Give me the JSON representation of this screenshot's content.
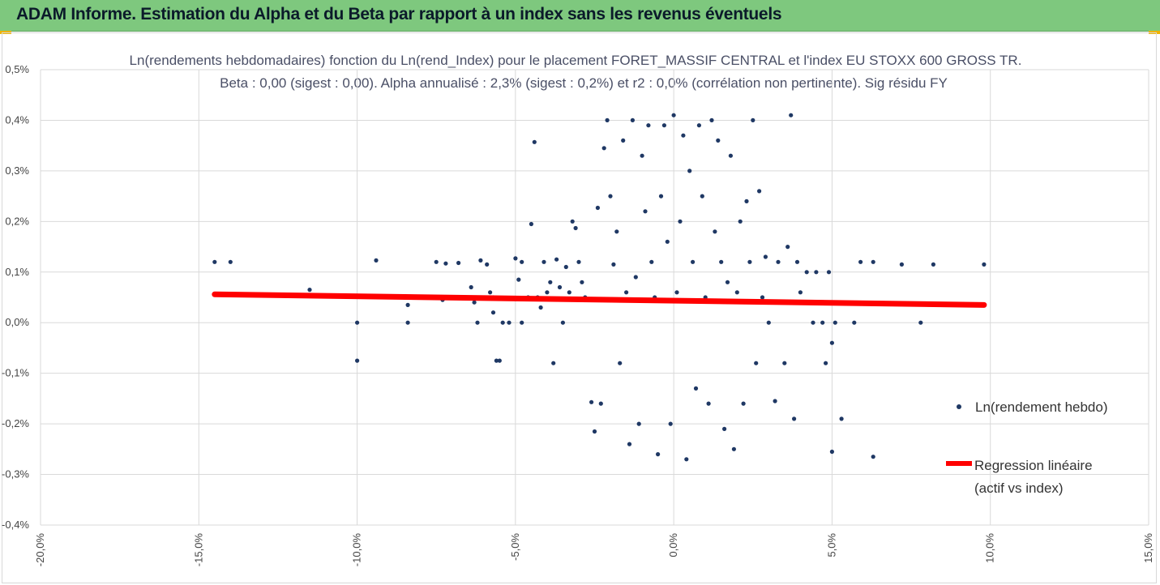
{
  "banner": {
    "title": "ADAM Informe. Estimation du Alpha et du Beta par rapport à un index sans les revenus éventuels"
  },
  "colors": {
    "banner": "#7ec87e",
    "points": "#1f3864",
    "regression": "#ff0000",
    "grid": "#d9d9d9",
    "accent": "#f0b400"
  },
  "chart_data": {
    "type": "scatter",
    "title": "Ln(rendements hebdomadaires) fonction du Ln(rend_Index) pour le placement FORET_MASSIF CENTRAL et l'index EU STOXX 600 GROSS TR.",
    "subtitle": "Beta : 0,00 (sigest : 0,00). Alpha annualisé : 2,3% (sigest : 0,2%) et r2 : 0,0% (corrélation non pertinente). Sig résidu FY",
    "xlim": [
      -20,
      15
    ],
    "ylim": [
      -0.4,
      0.5
    ],
    "x_ticks": [
      "-20,0%",
      "-15,0%",
      "-10,0%",
      "-5,0%",
      "0,0%",
      "5,0%",
      "10,0%",
      "15,0%"
    ],
    "y_ticks": [
      "0,5%",
      "0,4%",
      "0,3%",
      "0,2%",
      "0,1%",
      "0,0%",
      "-0,1%",
      "-0,2%",
      "-0,3%",
      "-0,4%"
    ],
    "grid": true,
    "legend_position": "right",
    "series": [
      {
        "name": "Ln(rendement hebdo)",
        "type": "scatter",
        "points": [
          [
            -14.5,
            0.12
          ],
          [
            -14,
            0.12
          ],
          [
            -11.5,
            0.065
          ],
          [
            -10,
            0
          ],
          [
            -10,
            -0.075
          ],
          [
            -9.4,
            0.123
          ],
          [
            -8.4,
            0.035
          ],
          [
            -8.4,
            0
          ],
          [
            -7.5,
            0.12
          ],
          [
            -7.3,
            0.045
          ],
          [
            -7.2,
            0.117
          ],
          [
            -6.8,
            0.118
          ],
          [
            -6.4,
            0.07
          ],
          [
            -6.3,
            0.04
          ],
          [
            -6.2,
            0
          ],
          [
            -6.1,
            0.123
          ],
          [
            -5.9,
            0.115
          ],
          [
            -5.8,
            0.06
          ],
          [
            -5.7,
            0.05
          ],
          [
            -5.7,
            0.02
          ],
          [
            -5.6,
            -0.075
          ],
          [
            -5.5,
            -0.075
          ],
          [
            -5.4,
            0
          ],
          [
            -5.2,
            0
          ],
          [
            -5,
            0.127
          ],
          [
            -4.9,
            0.085
          ],
          [
            -4.8,
            0.12
          ],
          [
            -4.8,
            0
          ],
          [
            -4.6,
            0.05
          ],
          [
            -4.5,
            0.195
          ],
          [
            -4.4,
            0.357
          ],
          [
            -4.3,
            0.05
          ],
          [
            -4.2,
            0.03
          ],
          [
            -4.1,
            0.12
          ],
          [
            -4,
            0.06
          ],
          [
            -3.9,
            0.08
          ],
          [
            -3.8,
            -0.08
          ],
          [
            -3.7,
            0.125
          ],
          [
            -3.6,
            0.07
          ],
          [
            -3.5,
            0
          ],
          [
            -3.4,
            0.11
          ],
          [
            -3.3,
            0.06
          ],
          [
            -3.2,
            0.2
          ],
          [
            -3.1,
            0.187
          ],
          [
            -3,
            0.12
          ],
          [
            -2.9,
            0.08
          ],
          [
            -2.8,
            0.05
          ],
          [
            -2.6,
            -0.157
          ],
          [
            -2.5,
            -0.215
          ],
          [
            -2.4,
            0.227
          ],
          [
            -2.3,
            -0.16
          ],
          [
            -2.2,
            0.345
          ],
          [
            -2.1,
            0.4
          ],
          [
            -2,
            0.25
          ],
          [
            -1.9,
            0.115
          ],
          [
            -1.8,
            0.18
          ],
          [
            -1.7,
            -0.08
          ],
          [
            -1.6,
            0.36
          ],
          [
            -1.5,
            0.06
          ],
          [
            -1.4,
            -0.24
          ],
          [
            -1.3,
            0.4
          ],
          [
            -1.2,
            0.09
          ],
          [
            -1.1,
            -0.2
          ],
          [
            -1,
            0.33
          ],
          [
            -0.9,
            0.22
          ],
          [
            -0.8,
            0.39
          ],
          [
            -0.7,
            0.12
          ],
          [
            -0.6,
            0.05
          ],
          [
            -0.5,
            -0.26
          ],
          [
            -0.4,
            0.25
          ],
          [
            -0.3,
            0.39
          ],
          [
            -0.2,
            0.16
          ],
          [
            -0.1,
            -0.2
          ],
          [
            0,
            0.41
          ],
          [
            0.1,
            0.06
          ],
          [
            0.2,
            0.2
          ],
          [
            0.3,
            0.37
          ],
          [
            0.4,
            -0.27
          ],
          [
            0.5,
            0.3
          ],
          [
            0.6,
            0.12
          ],
          [
            0.7,
            -0.13
          ],
          [
            0.8,
            0.39
          ],
          [
            0.9,
            0.25
          ],
          [
            1,
            0.05
          ],
          [
            1.1,
            -0.16
          ],
          [
            1.2,
            0.4
          ],
          [
            1.3,
            0.18
          ],
          [
            1.4,
            0.36
          ],
          [
            1.5,
            0.12
          ],
          [
            1.6,
            -0.21
          ],
          [
            1.7,
            0.08
          ],
          [
            1.8,
            0.33
          ],
          [
            1.9,
            -0.25
          ],
          [
            2,
            0.06
          ],
          [
            2.1,
            0.2
          ],
          [
            2.2,
            -0.16
          ],
          [
            2.3,
            0.24
          ],
          [
            2.4,
            0.12
          ],
          [
            2.5,
            0.4
          ],
          [
            2.6,
            -0.08
          ],
          [
            2.7,
            0.26
          ],
          [
            2.8,
            0.05
          ],
          [
            2.9,
            0.13
          ],
          [
            3,
            0
          ],
          [
            3.2,
            -0.155
          ],
          [
            3.3,
            0.12
          ],
          [
            3.5,
            -0.08
          ],
          [
            3.6,
            0.15
          ],
          [
            3.7,
            0.41
          ],
          [
            3.8,
            -0.19
          ],
          [
            3.9,
            0.12
          ],
          [
            4,
            0.06
          ],
          [
            4.2,
            0.1
          ],
          [
            4.4,
            0
          ],
          [
            4.5,
            0.1
          ],
          [
            4.7,
            0
          ],
          [
            4.8,
            -0.08
          ],
          [
            4.9,
            0.1
          ],
          [
            5,
            -0.04
          ],
          [
            5,
            -0.255
          ],
          [
            5.1,
            0
          ],
          [
            5.3,
            -0.19
          ],
          [
            5.4,
            0.04
          ],
          [
            5.7,
            0
          ],
          [
            5.9,
            0.12
          ],
          [
            6.3,
            0.12
          ],
          [
            6.3,
            -0.265
          ],
          [
            7.2,
            0.115
          ],
          [
            7.8,
            0
          ],
          [
            8.2,
            0.115
          ],
          [
            9.8,
            0.115
          ]
        ]
      },
      {
        "name": "Regression linéaire (actif vs index)",
        "type": "line",
        "points": [
          [
            -14.5,
            0.056
          ],
          [
            9.8,
            0.035
          ]
        ]
      }
    ]
  },
  "legend": {
    "scatter_label": "Ln(rendement hebdo)",
    "line_label_1": "Regression linéaire",
    "line_label_2": "(actif vs index)"
  }
}
